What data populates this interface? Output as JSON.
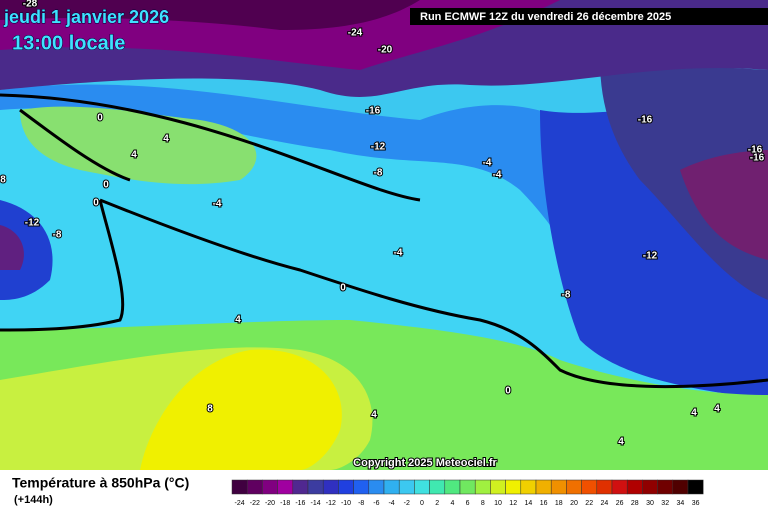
{
  "header": {
    "date": "jeudi 1 janvier 2026",
    "time": "13:00 locale",
    "run": "Run ECMWF 12Z du vendredi 26 décembre 2025"
  },
  "map": {
    "contour_labels": [
      "-28",
      "-24",
      "-20",
      "-16",
      "-12",
      "-8",
      "-4",
      "-4",
      "-16",
      "-16",
      "-16",
      "0",
      "4",
      "4",
      "0",
      "0",
      "8",
      "-12",
      "-8",
      "-4",
      "-4",
      "0",
      "-12",
      "-8",
      "4",
      "8",
      "4",
      "4",
      "4",
      "4",
      "0"
    ]
  },
  "copyright": "Copyright 2025 Meteociel.fr",
  "footer": {
    "title": "Température à 850hPa (°C)",
    "lead": "(+144h)"
  },
  "colorbar": {
    "labels": [
      -24,
      -22,
      -20,
      -18,
      -16,
      -14,
      -12,
      -10,
      -8,
      -6,
      -4,
      -2,
      0,
      2,
      4,
      6,
      8,
      10,
      12,
      14,
      16,
      18,
      20,
      22,
      24,
      26,
      28,
      30,
      32,
      34,
      36
    ]
  }
}
